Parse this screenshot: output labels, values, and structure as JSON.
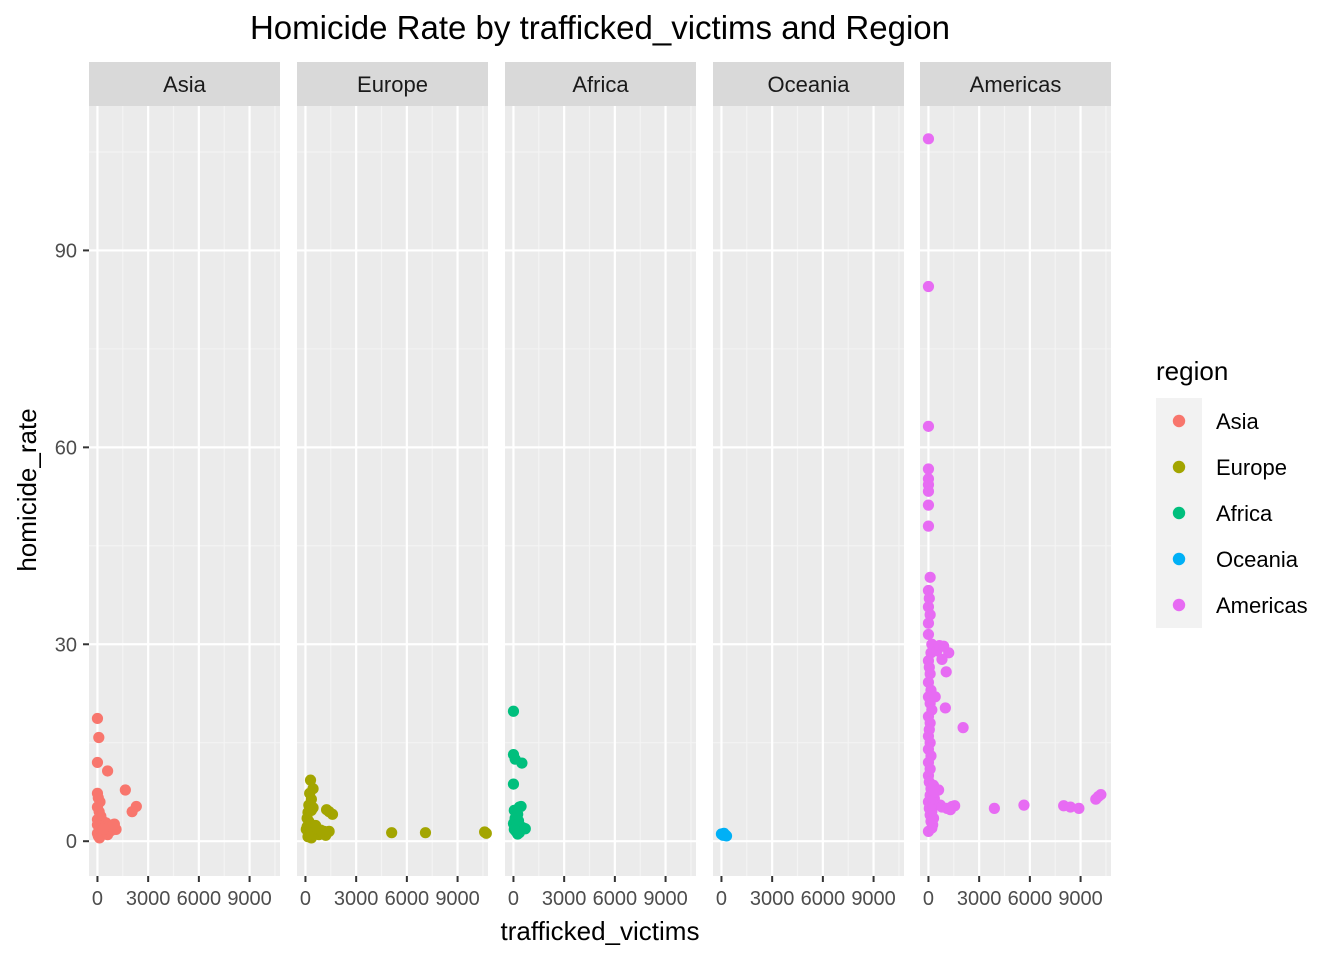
{
  "chart_data": {
    "type": "scatter",
    "title": "Homicide Rate by trafficked_victims and Region",
    "xlabel": "trafficked_victims",
    "ylabel": "homicide_rate",
    "xlim": [
      -500,
      10800
    ],
    "ylim": [
      -5.3,
      112
    ],
    "x_ticks": [
      0,
      3000,
      6000,
      9000
    ],
    "x_tick_labels": [
      "0",
      "3000",
      "6000",
      "9000"
    ],
    "y_ticks": [
      0,
      30,
      60,
      90
    ],
    "y_tick_labels": [
      "0",
      "30",
      "60",
      "90"
    ],
    "grid": true,
    "facet_by": "region",
    "facets": [
      "Asia",
      "Europe",
      "Africa",
      "Oceania",
      "Americas"
    ],
    "legend": {
      "title": "region",
      "position": "right",
      "entries": [
        "Asia",
        "Europe",
        "Africa",
        "Oceania",
        "Americas"
      ]
    },
    "colors": {
      "Asia": "#F8766D",
      "Europe": "#A3A500",
      "Africa": "#00BF7D",
      "Oceania": "#00B0F6",
      "Americas": "#E76BF3"
    },
    "series": [
      {
        "name": "Asia",
        "points": [
          [
            0,
            18.7
          ],
          [
            80,
            15.8
          ],
          [
            0,
            12
          ],
          [
            600,
            10.7
          ],
          [
            1650,
            7.8
          ],
          [
            2300,
            5.3
          ],
          [
            2050,
            4.5
          ],
          [
            0,
            7.3
          ],
          [
            50,
            6.6
          ],
          [
            150,
            6
          ],
          [
            0,
            5.2
          ],
          [
            100,
            4.5
          ],
          [
            200,
            3.8
          ],
          [
            0,
            3.3
          ],
          [
            300,
            3.1
          ],
          [
            500,
            2.8
          ],
          [
            0,
            2.5
          ],
          [
            150,
            2.3
          ],
          [
            400,
            2.1
          ],
          [
            700,
            2.2
          ],
          [
            1100,
            1.8
          ],
          [
            900,
            2.5
          ],
          [
            250,
            1.5
          ],
          [
            0,
            1.2
          ],
          [
            50,
            0.8
          ],
          [
            120,
            0.5
          ],
          [
            600,
            1
          ],
          [
            800,
            1.6
          ],
          [
            350,
            1.8
          ],
          [
            1000,
            2.6
          ]
        ]
      },
      {
        "name": "Europe",
        "points": [
          [
            300,
            9.3
          ],
          [
            450,
            8
          ],
          [
            250,
            7.3
          ],
          [
            350,
            6.4
          ],
          [
            200,
            5.5
          ],
          [
            450,
            5.1
          ],
          [
            350,
            4.7
          ],
          [
            150,
            4.4
          ],
          [
            100,
            3.5
          ],
          [
            200,
            3
          ],
          [
            300,
            2.6
          ],
          [
            100,
            2.2
          ],
          [
            50,
            1.8
          ],
          [
            450,
            1.6
          ],
          [
            650,
            1.2
          ],
          [
            800,
            1
          ],
          [
            1000,
            1.3
          ],
          [
            1200,
            0.9
          ],
          [
            1100,
            1.5
          ],
          [
            1400,
            1.5
          ],
          [
            150,
            0.7
          ],
          [
            350,
            0.5
          ],
          [
            250,
            1.1
          ],
          [
            500,
            1.8
          ],
          [
            600,
            2.4
          ],
          [
            700,
            1.9
          ],
          [
            900,
            1.7
          ],
          [
            1250,
            4.8
          ],
          [
            1600,
            4.1
          ],
          [
            1400,
            4.5
          ],
          [
            5100,
            1.3
          ],
          [
            7100,
            1.3
          ],
          [
            10600,
            1.4
          ],
          [
            10700,
            1.2
          ]
        ]
      },
      {
        "name": "Africa",
        "points": [
          [
            0,
            19.8
          ],
          [
            0,
            13.2
          ],
          [
            100,
            12.5
          ],
          [
            500,
            11.9
          ],
          [
            0,
            8.7
          ],
          [
            350,
            5.2
          ],
          [
            450,
            5.3
          ],
          [
            50,
            4.7
          ],
          [
            250,
            4.1
          ],
          [
            100,
            3.5
          ],
          [
            300,
            3.1
          ],
          [
            0,
            2.7
          ],
          [
            200,
            2.5
          ],
          [
            450,
            2.2
          ],
          [
            600,
            2
          ],
          [
            50,
            1.8
          ],
          [
            150,
            1.5
          ],
          [
            350,
            1.3
          ],
          [
            700,
            1.9
          ],
          [
            250,
            1.1
          ]
        ]
      },
      {
        "name": "Oceania",
        "points": [
          [
            0,
            1.1
          ],
          [
            100,
            0.9
          ],
          [
            200,
            1
          ],
          [
            300,
            0.8
          ],
          [
            150,
            1.2
          ],
          [
            250,
            0.9
          ]
        ]
      },
      {
        "name": "Americas",
        "points": [
          [
            0,
            107
          ],
          [
            0,
            84.5
          ],
          [
            0,
            63.2
          ],
          [
            0,
            56.7
          ],
          [
            0,
            55.2
          ],
          [
            0,
            54.3
          ],
          [
            0,
            53.3
          ],
          [
            0,
            51.2
          ],
          [
            0,
            48
          ],
          [
            100,
            40.2
          ],
          [
            0,
            38.2
          ],
          [
            50,
            37
          ],
          [
            0,
            35.7
          ],
          [
            100,
            34.5
          ],
          [
            0,
            33.2
          ],
          [
            0,
            31.5
          ],
          [
            200,
            30
          ],
          [
            150,
            28.7
          ],
          [
            0,
            27.5
          ],
          [
            50,
            26.5
          ],
          [
            100,
            25.5
          ],
          [
            0,
            24.2
          ],
          [
            150,
            23
          ],
          [
            0,
            22
          ],
          [
            100,
            21
          ],
          [
            200,
            20
          ],
          [
            0,
            19
          ],
          [
            100,
            18
          ],
          [
            50,
            17
          ],
          [
            0,
            16
          ],
          [
            100,
            15
          ],
          [
            0,
            14
          ],
          [
            150,
            13
          ],
          [
            0,
            12
          ],
          [
            100,
            11
          ],
          [
            0,
            10
          ],
          [
            50,
            9
          ],
          [
            150,
            8
          ],
          [
            100,
            7
          ],
          [
            0,
            6
          ],
          [
            50,
            5
          ],
          [
            100,
            4
          ],
          [
            150,
            3
          ],
          [
            200,
            2
          ],
          [
            0,
            1.5
          ],
          [
            250,
            2.5
          ],
          [
            300,
            3.5
          ],
          [
            200,
            4.5
          ],
          [
            250,
            5.5
          ],
          [
            350,
            6.5
          ],
          [
            400,
            7.5
          ],
          [
            300,
            8.5
          ],
          [
            500,
            29
          ],
          [
            650,
            29.8
          ],
          [
            900,
            29.7
          ],
          [
            1200,
            28.7
          ],
          [
            1050,
            25.8
          ],
          [
            800,
            27.7
          ],
          [
            1000,
            20.3
          ],
          [
            400,
            22
          ],
          [
            2050,
            17.3
          ],
          [
            600,
            7.8
          ],
          [
            700,
            5.5
          ],
          [
            800,
            5.2
          ],
          [
            1100,
            5
          ],
          [
            1400,
            5.3
          ],
          [
            1550,
            5.4
          ],
          [
            1300,
            4.8
          ],
          [
            3900,
            5
          ],
          [
            5650,
            5.5
          ],
          [
            8000,
            5.4
          ],
          [
            8400,
            5.2
          ],
          [
            8900,
            5
          ],
          [
            9900,
            6.4
          ],
          [
            10200,
            7.1
          ],
          [
            10050,
            6.8
          ]
        ]
      }
    ]
  }
}
